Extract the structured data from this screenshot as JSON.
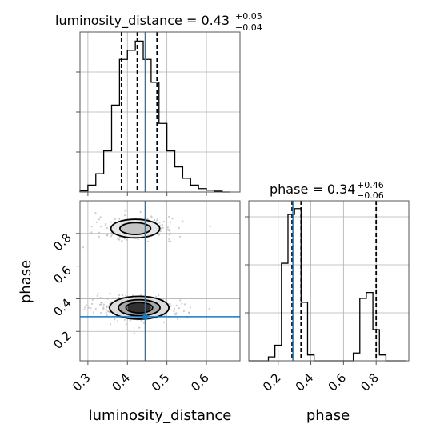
{
  "chart_data": {
    "type": "corner",
    "parameters": [
      "luminosity_distance",
      "phase"
    ],
    "truth": {
      "luminosity_distance": 0.445,
      "phase": 0.29
    },
    "titles": {
      "luminosity_distance": {
        "main": "luminosity_distance = 0.43",
        "plus": "+0.05",
        "minus": "−0.04"
      },
      "phase": {
        "main": "phase = 0.34",
        "plus": "+0.46",
        "minus": "−0.06"
      }
    },
    "axis_labels": {
      "x_left": "luminosity_distance",
      "x_right": "phase",
      "y_left": "phase"
    },
    "ticks": {
      "luminosity_distance": [
        0.3,
        0.4,
        0.5,
        0.6
      ],
      "phase_x": [
        0.2,
        0.4,
        0.6,
        0.8
      ],
      "phase_y": [
        0.2,
        0.4,
        0.6,
        0.8
      ]
    },
    "ranges": {
      "luminosity_distance": [
        0.28,
        0.685
      ],
      "phase": [
        0.02,
        1.0
      ]
    },
    "luminosity_distance_hist": {
      "edges": [
        0.28,
        0.3,
        0.32,
        0.34,
        0.36,
        0.38,
        0.4,
        0.42,
        0.44,
        0.46,
        0.48,
        0.5,
        0.52,
        0.54,
        0.56,
        0.58,
        0.6,
        0.62,
        0.64,
        0.66
      ],
      "counts": [
        0.5,
        3,
        8,
        18,
        38,
        58,
        62,
        66,
        58,
        48,
        30,
        18,
        11,
        6,
        3,
        1.5,
        0.8,
        0.4,
        0
      ],
      "quantiles": [
        0.385,
        0.425,
        0.475
      ],
      "ymax": 70
    },
    "phase_hist": {
      "edges": [
        0.02,
        0.06,
        0.1,
        0.14,
        0.18,
        0.22,
        0.26,
        0.3,
        0.34,
        0.38,
        0.42,
        0.46,
        0.5,
        0.54,
        0.58,
        0.62,
        0.66,
        0.7,
        0.74,
        0.78,
        0.82,
        0.86,
        0.9,
        0.94,
        0.98
      ],
      "counts": [
        0,
        0,
        0,
        2,
        8,
        50,
        75,
        78,
        30,
        3,
        0,
        0,
        0,
        0,
        0,
        0,
        4,
        32,
        35,
        16,
        3,
        0,
        0,
        0
      ],
      "quantiles": [
        0.285,
        0.34,
        0.8
      ],
      "ymax": 82
    },
    "density_blobs": [
      {
        "cx": 0.42,
        "cy": 0.83,
        "rx": 0.065,
        "ry": 0.06
      },
      {
        "cx": 0.43,
        "cy": 0.345,
        "rx": 0.075,
        "ry": 0.07
      }
    ]
  }
}
